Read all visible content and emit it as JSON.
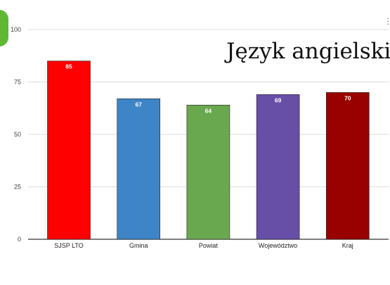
{
  "chart_data": {
    "type": "bar",
    "title": "Język angielski",
    "xlabel": "",
    "ylabel": "",
    "categories": [
      "SJSP LTO",
      "Gmina",
      "Powiat",
      "Województwo",
      "Kraj"
    ],
    "values": [
      85,
      67,
      64,
      69,
      70
    ],
    "bar_colors": [
      "#ff0000",
      "#3d85c6",
      "#6aa84f",
      "#674ea7",
      "#990000"
    ],
    "ylim": [
      0,
      100
    ],
    "yticks": [
      0,
      25,
      50,
      75,
      100
    ],
    "grid": true,
    "legend": "none",
    "data_labels": true
  },
  "decorations": {
    "corner_mark_color": "#5fb832",
    "menu_icon": "vertical-dots-icon"
  }
}
